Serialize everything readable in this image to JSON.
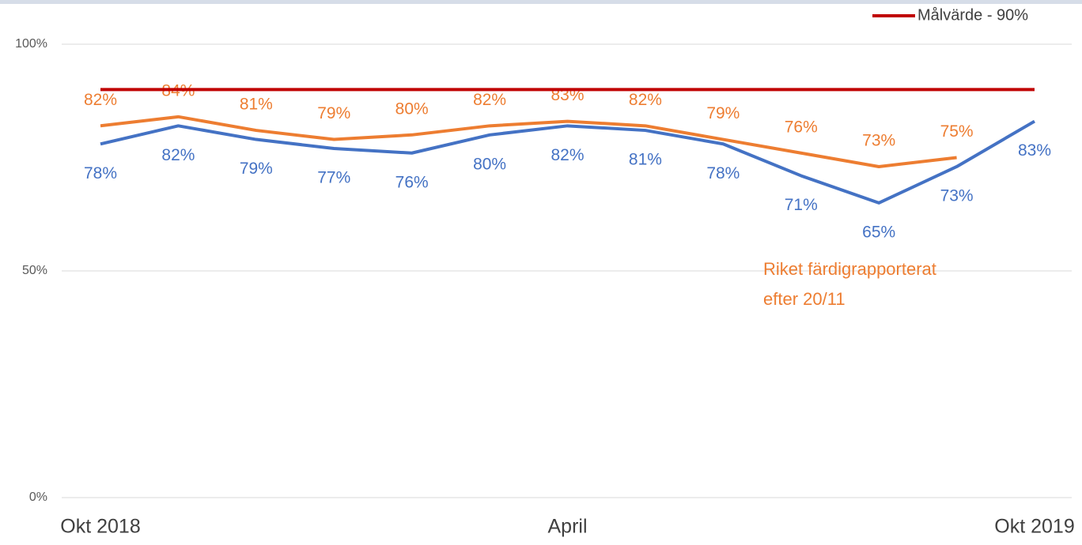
{
  "chart_data": {
    "type": "line",
    "categories": [
      "Okt 2018",
      null,
      null,
      null,
      null,
      null,
      "April",
      null,
      null,
      null,
      null,
      null,
      "Okt 2019"
    ],
    "series": [
      {
        "color": "#4472c4",
        "values": [
          78,
          82,
          79,
          77,
          76,
          80,
          82,
          81,
          78,
          71,
          65,
          73,
          83
        ],
        "value_labels": [
          "78%",
          "82%",
          "79%",
          "77%",
          "76%",
          "80%",
          "82%",
          "81%",
          "78%",
          "71%",
          "65%",
          "73%",
          "83%"
        ],
        "label_side": "below"
      },
      {
        "color": "#ed7d31",
        "values": [
          82,
          84,
          81,
          79,
          80,
          82,
          83,
          82,
          79,
          76,
          73,
          75,
          null
        ],
        "value_labels": [
          "82%",
          "84%",
          "81%",
          "79%",
          "80%",
          "82%",
          "83%",
          "82%",
          "79%",
          "76%",
          "73%",
          "75%",
          null
        ],
        "label_side": "above"
      },
      {
        "name": "Målvärde - 90%",
        "color": "#c00000",
        "values": [
          90,
          90,
          90,
          90,
          90,
          90,
          90,
          90,
          90,
          90,
          90,
          90,
          90
        ]
      }
    ],
    "annotation": [
      "Riket färdigrapporterat",
      "efter 20/11"
    ],
    "ylim": [
      0,
      100
    ],
    "yticks": [
      {
        "value": 0,
        "label": "0%"
      },
      {
        "value": 50,
        "label": "50%"
      },
      {
        "value": 100,
        "label": "100%"
      }
    ],
    "grid": true,
    "legend": "top-right"
  }
}
